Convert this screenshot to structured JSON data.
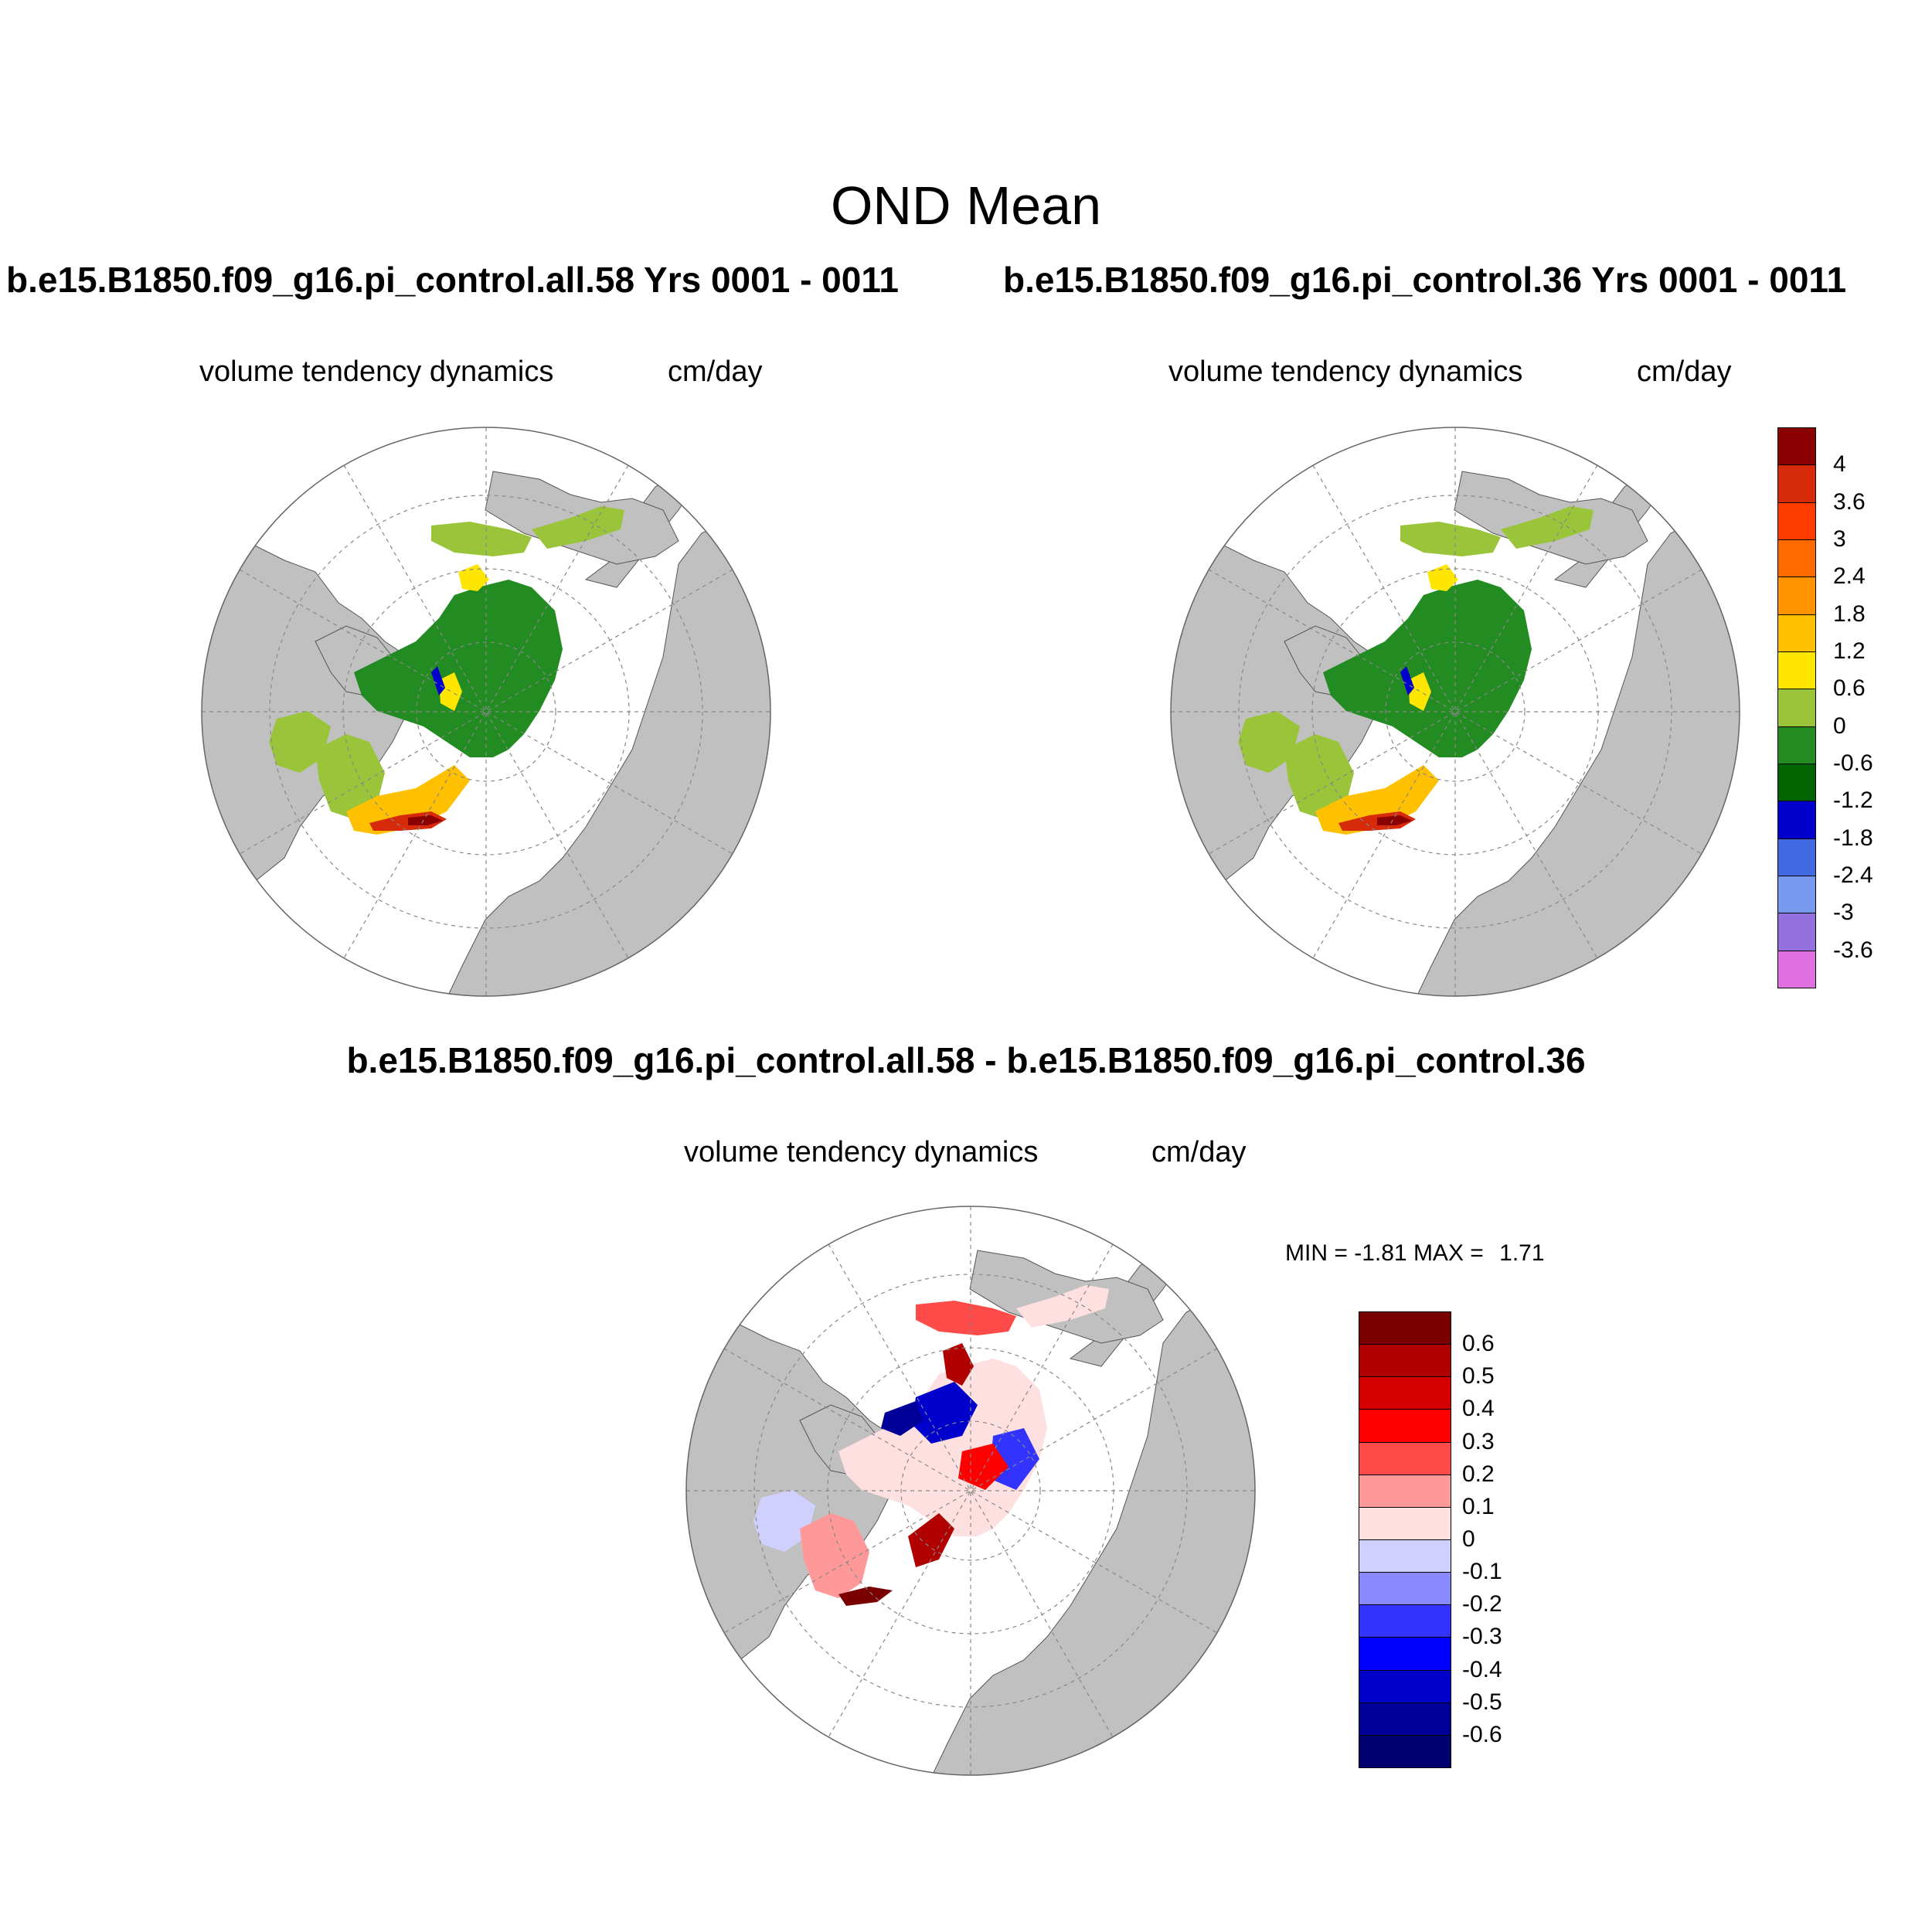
{
  "title": "OND Mean",
  "panels": [
    {
      "case": "b.e15.B1850.f09_g16.pi_control.all.58  Yrs 0001 - 0011",
      "variable": "volume tendency dynamics",
      "units": "cm/day"
    },
    {
      "case": "b.e15.B1850.f09_g16.pi_control.36  Yrs 0001 - 0011",
      "variable": "volume tendency dynamics",
      "units": "cm/day"
    },
    {
      "case": "b.e15.B1850.f09_g16.pi_control.all.58 - b.e15.B1850.f09_g16.pi_control.36",
      "variable": "volume tendency dynamics",
      "units": "cm/day",
      "min_label": "MIN =",
      "min": "-1.81",
      "max_label": "MAX =",
      "max": "1.71"
    }
  ],
  "colorbar_main": {
    "labels": [
      "4",
      "3.6",
      "3",
      "2.4",
      "1.8",
      "1.2",
      "0.6",
      "0",
      "-0.6",
      "-1.2",
      "-1.8",
      "-2.4",
      "-3",
      "-3.6"
    ],
    "colors": [
      "#8b0000",
      "#d62a0a",
      "#ff3c00",
      "#ff6a00",
      "#ff9400",
      "#ffc000",
      "#ffe600",
      "#9ac43a",
      "#228b22",
      "#006400",
      "#0000cd",
      "#4169e1",
      "#7799ee",
      "#9370db",
      "#e070e0"
    ]
  },
  "colorbar_diff": {
    "labels": [
      "0.6",
      "0.5",
      "0.4",
      "0.3",
      "0.2",
      "0.1",
      "0",
      "-0.1",
      "-0.2",
      "-0.3",
      "-0.4",
      "-0.5",
      "-0.6"
    ],
    "colors": [
      "#7a0000",
      "#b00000",
      "#d60000",
      "#ff0000",
      "#ff4a4a",
      "#ff9999",
      "#ffe0e0",
      "#d0d0ff",
      "#8888ff",
      "#3333ff",
      "#0000ff",
      "#0000cc",
      "#000099",
      "#000070"
    ]
  },
  "map_colors": {
    "land": "#c0c0c0",
    "ocean": "#ffffff",
    "grid": "#888888"
  }
}
